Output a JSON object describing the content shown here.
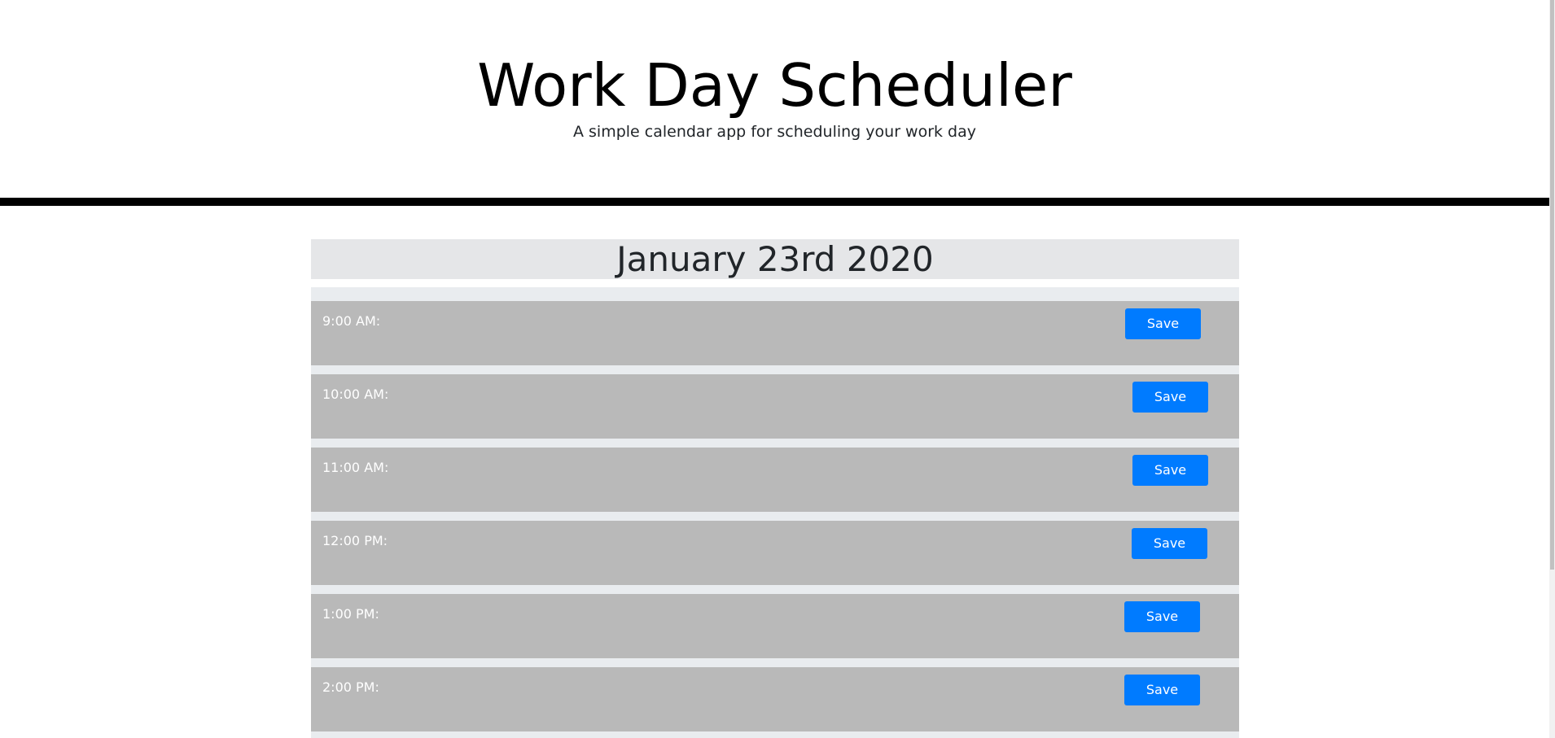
{
  "header": {
    "title": "Work Day Scheduler",
    "subtitle": "A simple calendar app for scheduling your work day"
  },
  "current_date": "January 23rd 2020",
  "time_blocks": [
    {
      "hour": "9:00 AM:",
      "entry": "",
      "save_label": "Save"
    },
    {
      "hour": "10:00 AM:",
      "entry": "",
      "save_label": "Save"
    },
    {
      "hour": "11:00 AM:",
      "entry": "",
      "save_label": "Save"
    },
    {
      "hour": "12:00 PM:",
      "entry": "",
      "save_label": "Save"
    },
    {
      "hour": "1:00 PM:",
      "entry": "",
      "save_label": "Save"
    },
    {
      "hour": "2:00 PM:",
      "entry": "",
      "save_label": "Save"
    }
  ],
  "colors": {
    "past_block": "#b9b9b9",
    "save_button": "#007bff",
    "header_rule": "#000000"
  }
}
